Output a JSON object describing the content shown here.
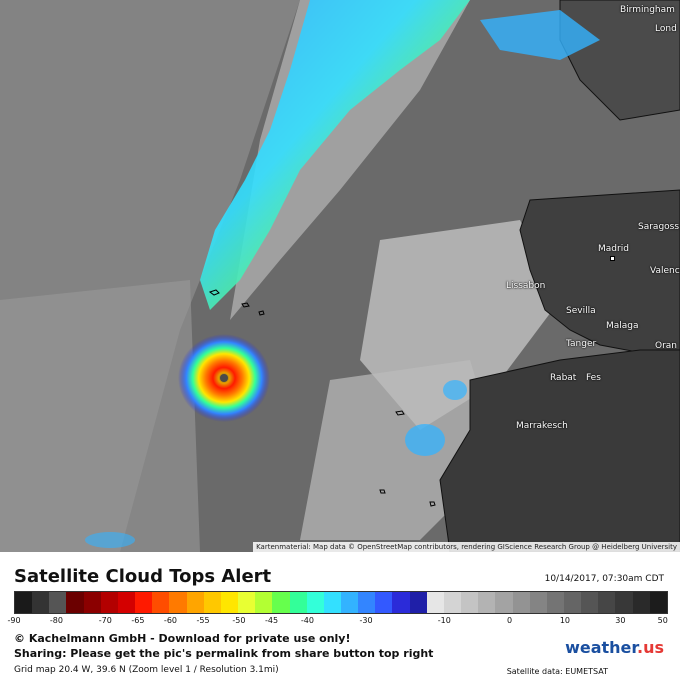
{
  "map": {
    "cities": [
      {
        "name": "Birmingham"
      },
      {
        "name": "Lond"
      },
      {
        "name": "Saragoss"
      },
      {
        "name": "Madrid"
      },
      {
        "name": "Valenc"
      },
      {
        "name": "Lissabon"
      },
      {
        "name": "Sevilla"
      },
      {
        "name": "Malaga"
      },
      {
        "name": "Tanger"
      },
      {
        "name": "Oran"
      },
      {
        "name": "Rabat"
      },
      {
        "name": "Fes"
      },
      {
        "name": "Marrakesch"
      }
    ],
    "attribution": "Kartenmaterial: Map data © OpenStreetMap contributors, rendering GIScience Research Group @ Heidelberg University"
  },
  "legend": {
    "title": "Satellite Cloud Tops Alert",
    "timestamp": "10/14/2017, 07:30am CDT",
    "ticks": [
      "-90",
      "-80",
      "-70",
      "-65",
      "-60",
      "-55",
      "-50",
      "-45",
      "-40",
      "-30",
      "-10",
      "0",
      "10",
      "30",
      "50"
    ],
    "copyright": "© Kachelmann GmbH - Download for private use only!",
    "sharing": "Sharing: Please get the pic's permalink from share button top right",
    "grid_info": "Grid map 20.4 W, 39.6 N (Zoom level 1 / Resolution 3.1mi)",
    "logo_text": "weather",
    "logo_suffix": ".us",
    "satellite_data": "Satellite data: EUMETSAT",
    "scale_colors": [
      "#1a1a1a",
      "#333333",
      "#555555",
      "#6b0000",
      "#8b0000",
      "#b30000",
      "#d40000",
      "#ff1a00",
      "#ff4d00",
      "#ff7a00",
      "#ffa500",
      "#ffc800",
      "#ffe600",
      "#e8ff33",
      "#b3ff33",
      "#66ff4d",
      "#33ff99",
      "#33ffd9",
      "#33e0ff",
      "#33b3ff",
      "#3385ff",
      "#3359ff",
      "#2b2bd9",
      "#1f1fa8",
      "#e6e6e6",
      "#d4d4d4",
      "#c4c4c4",
      "#b3b3b3",
      "#a3a3a3",
      "#939393",
      "#848484",
      "#747474",
      "#656565",
      "#555555",
      "#464646",
      "#383838",
      "#2a2a2a",
      "#1c1c1c"
    ]
  }
}
